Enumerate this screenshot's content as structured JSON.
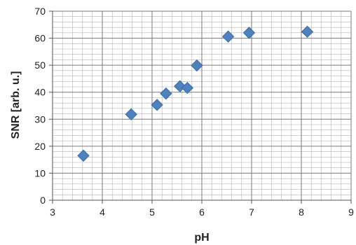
{
  "chart_data": {
    "type": "scatter",
    "xlabel": "pH",
    "ylabel": "SNR [arb. u.]",
    "xlim": [
      3,
      9
    ],
    "ylim": [
      0,
      70
    ],
    "x_ticks": [
      3,
      4,
      5,
      6,
      7,
      8,
      9
    ],
    "y_ticks": [
      0,
      10,
      20,
      30,
      40,
      50,
      60,
      70
    ],
    "x_tick_labels": [
      "3",
      "4",
      "5",
      "6",
      "7",
      "8",
      "9"
    ],
    "y_tick_labels": [
      "0",
      "10",
      "20",
      "30",
      "40",
      "50",
      "60",
      "70"
    ],
    "x_minor_step": 0.2,
    "y_minor_step": 2,
    "grid": true,
    "marker": "diamond",
    "marker_color": "#4f81bd",
    "series": [
      {
        "points": [
          {
            "x": 3.62,
            "y": 16.5
          },
          {
            "x": 4.58,
            "y": 31.8
          },
          {
            "x": 5.1,
            "y": 35.3
          },
          {
            "x": 5.28,
            "y": 39.5
          },
          {
            "x": 5.56,
            "y": 42.2
          },
          {
            "x": 5.71,
            "y": 41.6
          },
          {
            "x": 5.9,
            "y": 49.9
          },
          {
            "x": 6.53,
            "y": 60.6
          },
          {
            "x": 6.95,
            "y": 62.0
          },
          {
            "x": 8.12,
            "y": 62.4
          }
        ]
      }
    ]
  }
}
